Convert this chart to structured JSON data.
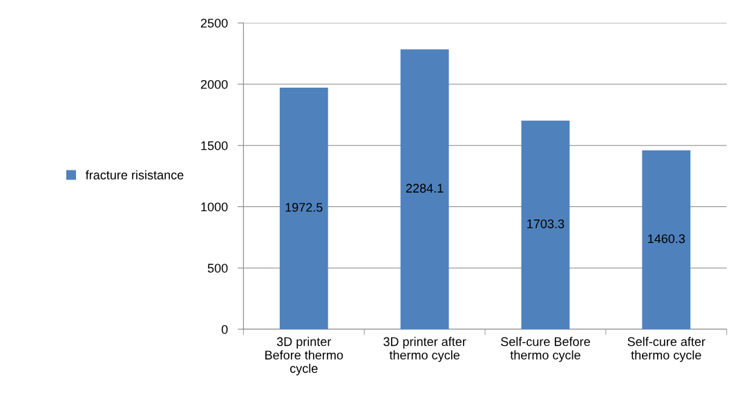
{
  "chart_data": {
    "type": "bar",
    "categories": [
      "3D printer Before thermo cycle",
      "3D printer after thermo cycle",
      "Self-cure Before thermo cycle",
      "Self-cure after thermo cycle"
    ],
    "series": [
      {
        "name": "fracture risistance",
        "color": "#4f81bd",
        "values": [
          1972.5,
          2284.1,
          1703.3,
          1460.3
        ]
      }
    ],
    "ylim": [
      0,
      2500
    ],
    "yticks": [
      0,
      500,
      1000,
      1500,
      2000,
      2500
    ],
    "grid": "y",
    "legend": "left",
    "data_labels": true
  }
}
